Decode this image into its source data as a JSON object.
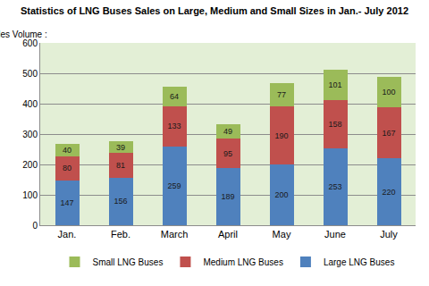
{
  "chart_data": {
    "type": "bar",
    "title": "Statistics of LNG Buses Sales on Large, Medium and Small Sizes in Jan.- July 2012",
    "ylabel": "Sales Volume :",
    "categories": [
      "Jan.",
      "Feb.",
      "March",
      "April",
      "May",
      "June",
      "July"
    ],
    "series": [
      {
        "name": "Large LNG Buses",
        "color": "#4f81bd",
        "values": [
          147,
          156,
          259,
          189,
          200,
          253,
          220
        ]
      },
      {
        "name": "Medium LNG Buses",
        "color": "#c0504d",
        "values": [
          80,
          81,
          133,
          95,
          190,
          158,
          167
        ]
      },
      {
        "name": "Small LNG Buses",
        "color": "#9bbb59",
        "values": [
          40,
          39,
          64,
          49,
          77,
          101,
          100
        ]
      }
    ],
    "stacked": true,
    "data_labels": true,
    "ylim": [
      0,
      600
    ],
    "yticks": [
      0,
      100,
      200,
      300,
      400,
      500,
      600
    ],
    "grid": true,
    "legend": "bottom"
  }
}
